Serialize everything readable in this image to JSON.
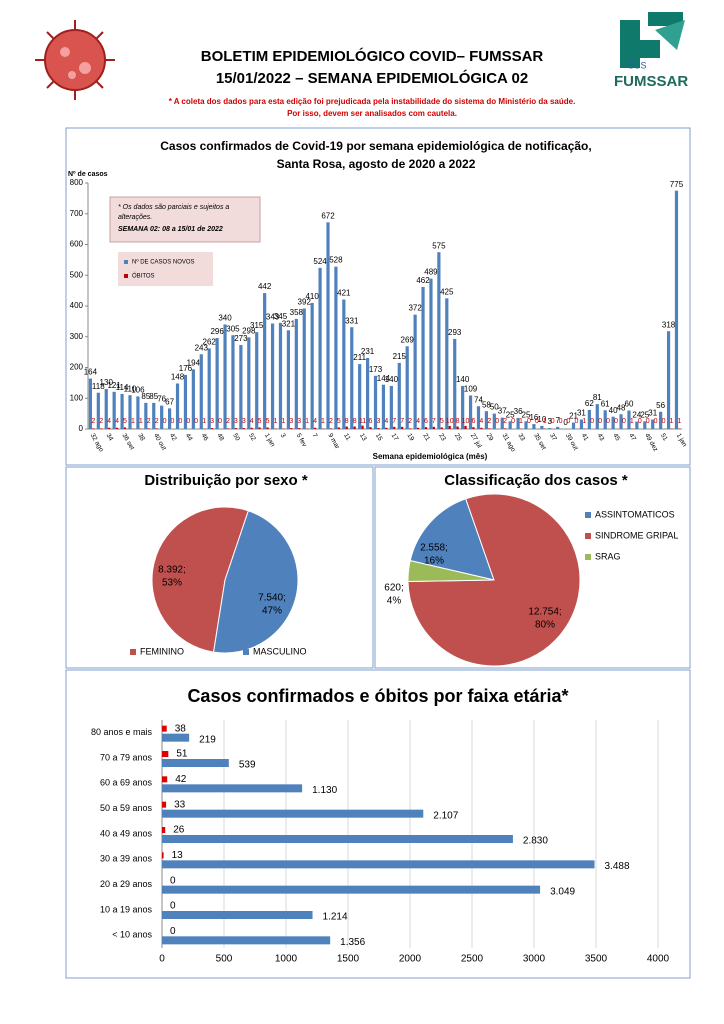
{
  "header": {
    "title": "BOLETIM EPIDEMIOLÓGICO COVID– FUMSSAR",
    "subtitle": "15/01/2022 – SEMANA EPIDEMIOLÓGICA 02",
    "note": [
      "* A coleta dos dados para esta edição foi prejudicada pela instabilidade do sistema do Ministério da saúde.",
      "Por isso, devem ser analisados com cautela."
    ],
    "logo_text": [
      "SUS",
      "FUMSSAR"
    ]
  },
  "chart_data": [
    {
      "type": "bar",
      "title": "Casos confirmados de Covid-19 por semana epidemiológica de notificação,",
      "subtitle": "Santa Rosa,  agosto  de 2020 a 2022",
      "y_label": "Nº de casos",
      "x_label": "Semana epidemiológica (mês)",
      "annotation": [
        "* Os dados são parciais e sujeitos a",
        "alterações.",
        "SEMANA 02: 08 a 15/01 de 2022"
      ],
      "categories": [
        "32 ago",
        null,
        "34",
        null,
        "36 set",
        null,
        "38",
        null,
        "40 out",
        null,
        "42",
        null,
        "44",
        null,
        "46",
        null,
        "48",
        null,
        "50",
        null,
        "52",
        null,
        "1 jan",
        null,
        "3",
        null,
        "5 fev",
        null,
        "7",
        null,
        "9 mar",
        null,
        "11",
        null,
        "13",
        null,
        "15",
        null,
        "17",
        null,
        "19",
        null,
        "21",
        null,
        "23",
        null,
        "25",
        null,
        "27 jul",
        null,
        "29",
        null,
        "31 ago",
        null,
        "33",
        null,
        "35 set",
        null,
        "37",
        null,
        "39 out",
        null,
        "41",
        null,
        "43",
        null,
        "45",
        null,
        "47",
        null,
        "49 dez",
        null,
        "51",
        null,
        "1 jan"
      ],
      "series": [
        {
          "name": "Nº DE CASOS NOVOS",
          "color": "#4f81bd",
          "values": [
            164,
            118,
            130,
            121,
            114,
            110,
            106,
            85,
            85,
            76,
            67,
            148,
            176,
            194,
            243,
            262,
            296,
            340,
            305,
            273,
            298,
            315,
            442,
            343,
            345,
            321,
            358,
            392,
            410,
            524,
            672,
            528,
            421,
            331,
            211,
            231,
            173,
            144,
            140,
            215,
            269,
            372,
            462,
            489,
            575,
            425,
            293,
            140,
            109,
            74,
            58,
            50,
            37,
            25,
            36,
            25,
            16,
            10,
            3,
            7,
            0,
            21,
            31,
            62,
            81,
            61,
            40,
            48,
            60,
            24,
            25,
            31,
            56,
            318,
            775
          ]
        },
        {
          "name": "ÓBITOS",
          "color": "#c00000",
          "values": [
            2,
            2,
            4,
            4,
            5,
            1,
            1,
            2,
            2,
            0,
            0,
            0,
            0,
            0,
            1,
            3,
            0,
            2,
            3,
            3,
            4,
            5,
            5,
            1,
            1,
            3,
            3,
            1,
            4,
            1,
            2,
            5,
            8,
            8,
            11,
            6,
            3,
            4,
            7,
            7,
            2,
            4,
            6,
            7,
            5,
            10,
            8,
            10,
            6,
            4,
            2,
            0,
            2,
            0,
            1,
            0,
            0,
            1,
            0,
            0,
            0,
            0,
            1,
            0,
            0,
            0,
            0,
            0,
            1,
            0,
            0,
            0,
            0,
            1,
            1
          ]
        }
      ],
      "ylim": [
        0,
        800
      ],
      "yticks": [
        0,
        100,
        200,
        300,
        400,
        500,
        600,
        700,
        800
      ],
      "grid": false
    },
    {
      "type": "pie",
      "title": "Distribuição por sexo *",
      "categories": [
        "FEMININO",
        "MASCULINO"
      ],
      "values": [
        8392,
        7540
      ],
      "value_labels": [
        "8.392;",
        "7.540;"
      ],
      "percentages": [
        53,
        47
      ],
      "percent_labels": [
        "53%",
        "47%"
      ],
      "colors": [
        "#c0504d",
        "#4f81bd"
      ],
      "legend": "bottom"
    },
    {
      "type": "pie",
      "title": "Classificação dos casos *",
      "categories": [
        "ASSINTOMATICOS",
        "SINDROME GRIPAL",
        "SRAG"
      ],
      "values": [
        2558,
        12754,
        620
      ],
      "value_labels": [
        "2.558;",
        "12.754;",
        "620;"
      ],
      "percentages": [
        16,
        80,
        4
      ],
      "percent_labels": [
        "16%",
        "80%",
        "4%"
      ],
      "colors": [
        "#4f81bd",
        "#c0504d",
        "#9bbb59"
      ],
      "legend": "right"
    },
    {
      "type": "hbar",
      "title": "Casos confirmados e óbitos  por faixa etária*",
      "categories": [
        "80 anos e mais",
        "70 a 79 anos",
        "60 a 69 anos",
        "50 a 59 anos",
        "40 a 49 anos",
        "30 a 39 anos",
        "20 a 29 anos",
        "10 a 19 anos",
        "< 10 anos"
      ],
      "series": [
        {
          "color": "#4f81bd",
          "values": [
            219,
            539,
            1130,
            2107,
            2830,
            3488,
            3049,
            1214,
            1356
          ],
          "value_labels": [
            "219",
            "539",
            "1.130",
            "2.107",
            "2.830",
            "3.488",
            "3.049",
            "1.214",
            "1.356"
          ]
        },
        {
          "color": "#e00000",
          "values": [
            38,
            51,
            42,
            33,
            26,
            13,
            0,
            0,
            0
          ]
        }
      ],
      "xlim": [
        0,
        4000
      ],
      "xticks": [
        0,
        500,
        1000,
        1500,
        2000,
        2500,
        3000,
        3500,
        4000
      ],
      "grid": true
    }
  ]
}
